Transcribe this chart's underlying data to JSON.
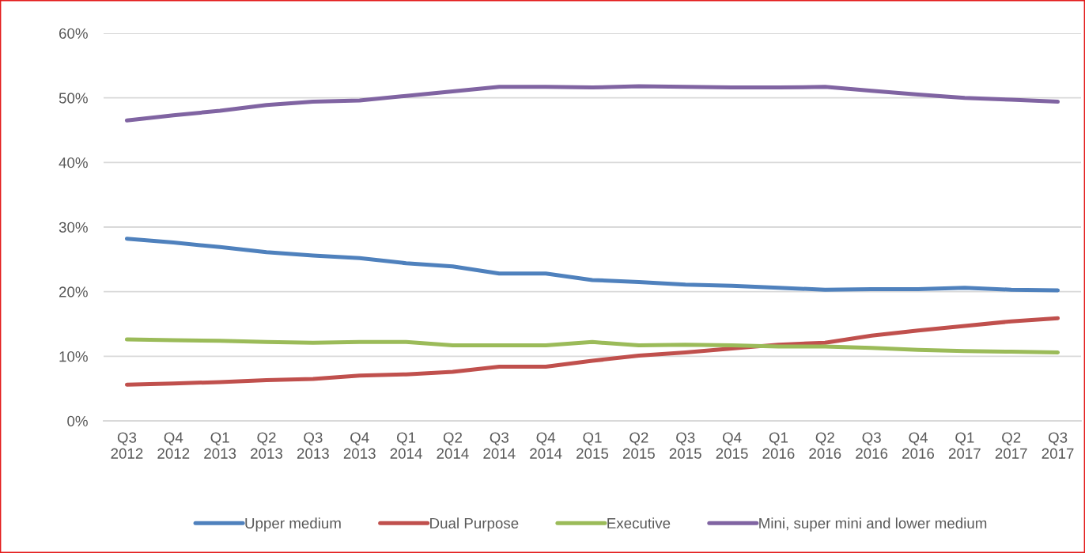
{
  "chart_data": {
    "type": "line",
    "categories": [
      "Q3 2012",
      "Q4 2012",
      "Q1 2013",
      "Q2 2013",
      "Q3 2013",
      "Q4 2013",
      "Q1 2014",
      "Q2 2014",
      "Q3 2014",
      "Q4 2014",
      "Q1 2015",
      "Q2 2015",
      "Q3 2015",
      "Q4 2015",
      "Q1 2016",
      "Q2 2016",
      "Q3 2016",
      "Q4 2016",
      "Q1 2017",
      "Q2 2017",
      "Q3 2017"
    ],
    "series": [
      {
        "name": "Upper medium",
        "color": "#4f81bd",
        "values": [
          28.2,
          27.6,
          26.9,
          26.1,
          25.6,
          25.2,
          24.4,
          23.9,
          22.8,
          22.8,
          21.8,
          21.5,
          21.1,
          20.9,
          20.6,
          20.3,
          20.4,
          20.4,
          20.6,
          20.3,
          20.2
        ]
      },
      {
        "name": "Dual Purpose",
        "color": "#c0504d",
        "values": [
          5.6,
          5.8,
          6.0,
          6.3,
          6.5,
          7.0,
          7.2,
          7.6,
          8.4,
          8.4,
          9.3,
          10.1,
          10.6,
          11.2,
          11.8,
          12.1,
          13.2,
          14.0,
          14.7,
          15.4,
          15.9
        ]
      },
      {
        "name": "Executive",
        "color": "#9bbb59",
        "values": [
          12.6,
          12.5,
          12.4,
          12.2,
          12.1,
          12.2,
          12.2,
          11.7,
          11.7,
          11.7,
          12.2,
          11.7,
          11.8,
          11.7,
          11.5,
          11.5,
          11.3,
          11.0,
          10.8,
          10.7,
          10.6
        ]
      },
      {
        "name": "Mini, super mini and lower medium",
        "color": "#8064a2",
        "values": [
          46.5,
          47.3,
          48.0,
          48.9,
          49.4,
          49.6,
          50.3,
          51.0,
          51.7,
          51.7,
          51.6,
          51.8,
          51.7,
          51.6,
          51.6,
          51.7,
          51.1,
          50.5,
          50.0,
          49.7,
          49.4
        ]
      }
    ],
    "ylim": [
      0,
      60
    ],
    "yticks": [
      {
        "value": 0,
        "label": "0%"
      },
      {
        "value": 10,
        "label": "10%"
      },
      {
        "value": 20,
        "label": "20%"
      },
      {
        "value": 30,
        "label": "30%"
      },
      {
        "value": 40,
        "label": "40%"
      },
      {
        "value": 50,
        "label": "50%"
      },
      {
        "value": 60,
        "label": "60%"
      }
    ],
    "grid": "y",
    "legend": "bottom",
    "marker": "none",
    "line_style": "solid"
  }
}
